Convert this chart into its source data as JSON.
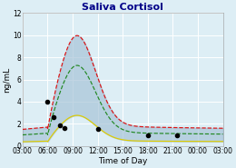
{
  "title": "Saliva Cortisol",
  "ylabel": "ng/mL",
  "xlabel": "Time of Day",
  "ylim": [
    0,
    12
  ],
  "yticks": [
    0,
    2,
    4,
    6,
    8,
    10,
    12
  ],
  "xtick_labels": [
    "03:00",
    "06:00",
    "09:00",
    "12:00",
    "15:00",
    "18:00",
    "21:00",
    "00:00",
    "03:00"
  ],
  "bg_color": "#ddeef5",
  "fill_color": "#a8c4d8",
  "red_color": "#dd1111",
  "green_color": "#228822",
  "yellow_color": "#ddcc00",
  "dot_color": "#000000",
  "dot_x": [
    6.0,
    6.75,
    7.5,
    8.0,
    12.0,
    18.0,
    21.5
  ],
  "dot_y": [
    4.0,
    2.6,
    1.9,
    1.6,
    1.5,
    1.0,
    1.0
  ],
  "title_fontsize": 8,
  "label_fontsize": 6.5,
  "tick_fontsize": 5.5
}
